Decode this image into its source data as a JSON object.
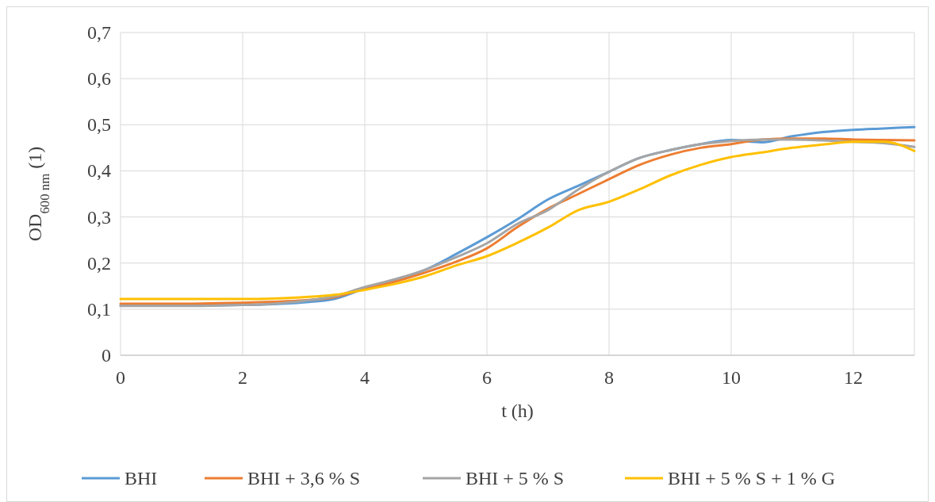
{
  "chart_data": {
    "type": "line",
    "xlabel": "t (h)",
    "ylabel": "OD$_{600 nm}$ (1)",
    "x": [
      0,
      1,
      2,
      2.5,
      3,
      3.5,
      4,
      4.5,
      5,
      5.5,
      6,
      6.5,
      7,
      7.5,
      8,
      8.5,
      9,
      9.5,
      10,
      10.5,
      11,
      11.5,
      12,
      12.5,
      13
    ],
    "series": [
      {
        "name": "BHI",
        "color": "#5b9bd5",
        "values": [
          0.108,
          0.108,
          0.109,
          0.111,
          0.115,
          0.122,
          0.145,
          0.163,
          0.186,
          0.22,
          0.256,
          0.295,
          0.338,
          0.368,
          0.398,
          0.428,
          0.445,
          0.458,
          0.467,
          0.462,
          0.475,
          0.484,
          0.489,
          0.492,
          0.495
        ]
      },
      {
        "name": "BHI + 3,6 % S",
        "color": "#ed7d31",
        "values": [
          0.112,
          0.112,
          0.114,
          0.116,
          0.119,
          0.126,
          0.145,
          0.16,
          0.18,
          0.203,
          0.232,
          0.278,
          0.318,
          0.35,
          0.382,
          0.413,
          0.435,
          0.45,
          0.458,
          0.468,
          0.47,
          0.47,
          0.468,
          0.467,
          0.466
        ]
      },
      {
        "name": "BHI + 5 % S",
        "color": "#a5a5a5",
        "values": [
          0.107,
          0.107,
          0.109,
          0.112,
          0.118,
          0.128,
          0.148,
          0.165,
          0.186,
          0.213,
          0.243,
          0.285,
          0.315,
          0.36,
          0.398,
          0.428,
          0.445,
          0.458,
          0.465,
          0.468,
          0.468,
          0.466,
          0.463,
          0.46,
          0.452
        ]
      },
      {
        "name": "BHI + 5 % S + 1 % G",
        "color": "#ffc000",
        "values": [
          0.122,
          0.122,
          0.122,
          0.123,
          0.126,
          0.131,
          0.142,
          0.155,
          0.172,
          0.195,
          0.215,
          0.244,
          0.277,
          0.315,
          0.333,
          0.36,
          0.39,
          0.413,
          0.43,
          0.44,
          0.45,
          0.457,
          0.463,
          0.463,
          0.443
        ]
      }
    ],
    "xlim": [
      0,
      13
    ],
    "xticks": [
      0,
      2,
      4,
      6,
      8,
      10,
      12
    ],
    "ylim": [
      0,
      0.7
    ],
    "yticks": [
      0,
      {
        "value": 0.1,
        "label": "0,1"
      },
      {
        "value": 0.2,
        "label": "0,2"
      },
      {
        "value": 0.3,
        "label": "0,3"
      },
      {
        "value": 0.4,
        "label": "0,4"
      },
      {
        "value": 0.5,
        "label": "0,5"
      },
      {
        "value": 0.6,
        "label": "0,6"
      },
      {
        "value": 0.7,
        "label": "0,7"
      }
    ],
    "grid": true,
    "legend": "bottom",
    "line_style": "solid"
  }
}
